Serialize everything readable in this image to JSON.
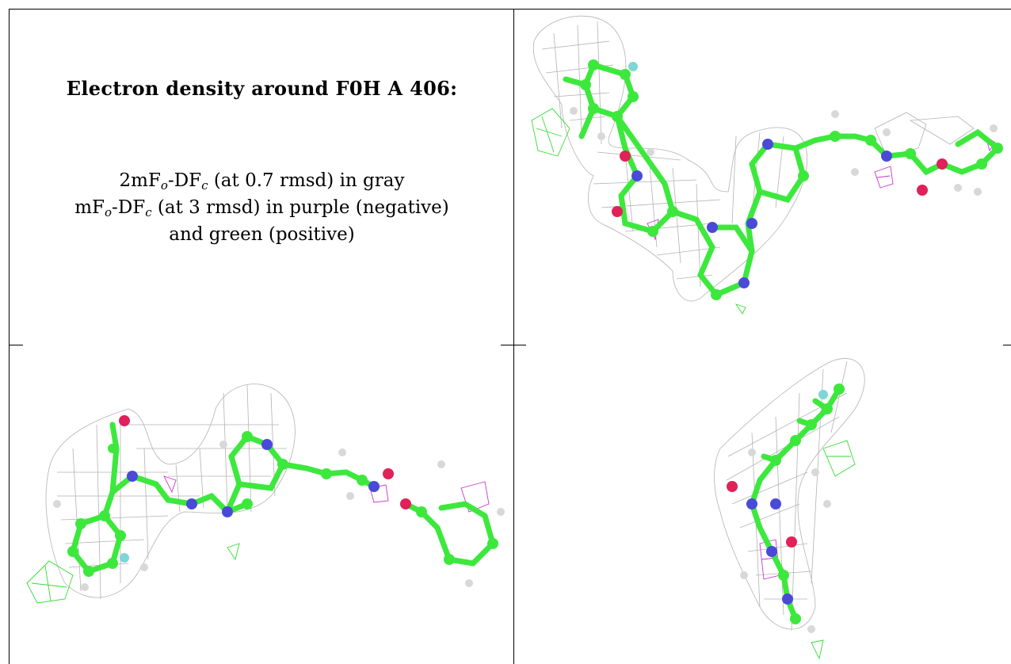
{
  "title": "Electron density around F0H A 406:",
  "legend": {
    "line1_main": "2mF",
    "line1_sub1": "o",
    "line1_mid": "-DF",
    "line1_sub2": "c",
    "line1_rest": " (at 0.7 rmsd) in gray",
    "line2_main": "mF",
    "line2_sub1": "o",
    "line2_mid": "-DF",
    "line2_sub2": "c",
    "line2_rest": " (at 3 rmsd) in purple (negative)",
    "line3": "and green (positive)"
  },
  "colors": {
    "carbon": "#3de83d",
    "nitrogen": "#4a4ad8",
    "oxygen": "#e0215a",
    "fluorine": "#7fd6d6",
    "hydrogen": "#d8d8d8",
    "density_gray": "#9a9a9a",
    "density_negative": "#cc33cc",
    "density_positive": "#33dd33"
  },
  "panels": [
    {
      "name": "view-top-right"
    },
    {
      "name": "view-bottom-left"
    },
    {
      "name": "view-bottom-right"
    }
  ]
}
